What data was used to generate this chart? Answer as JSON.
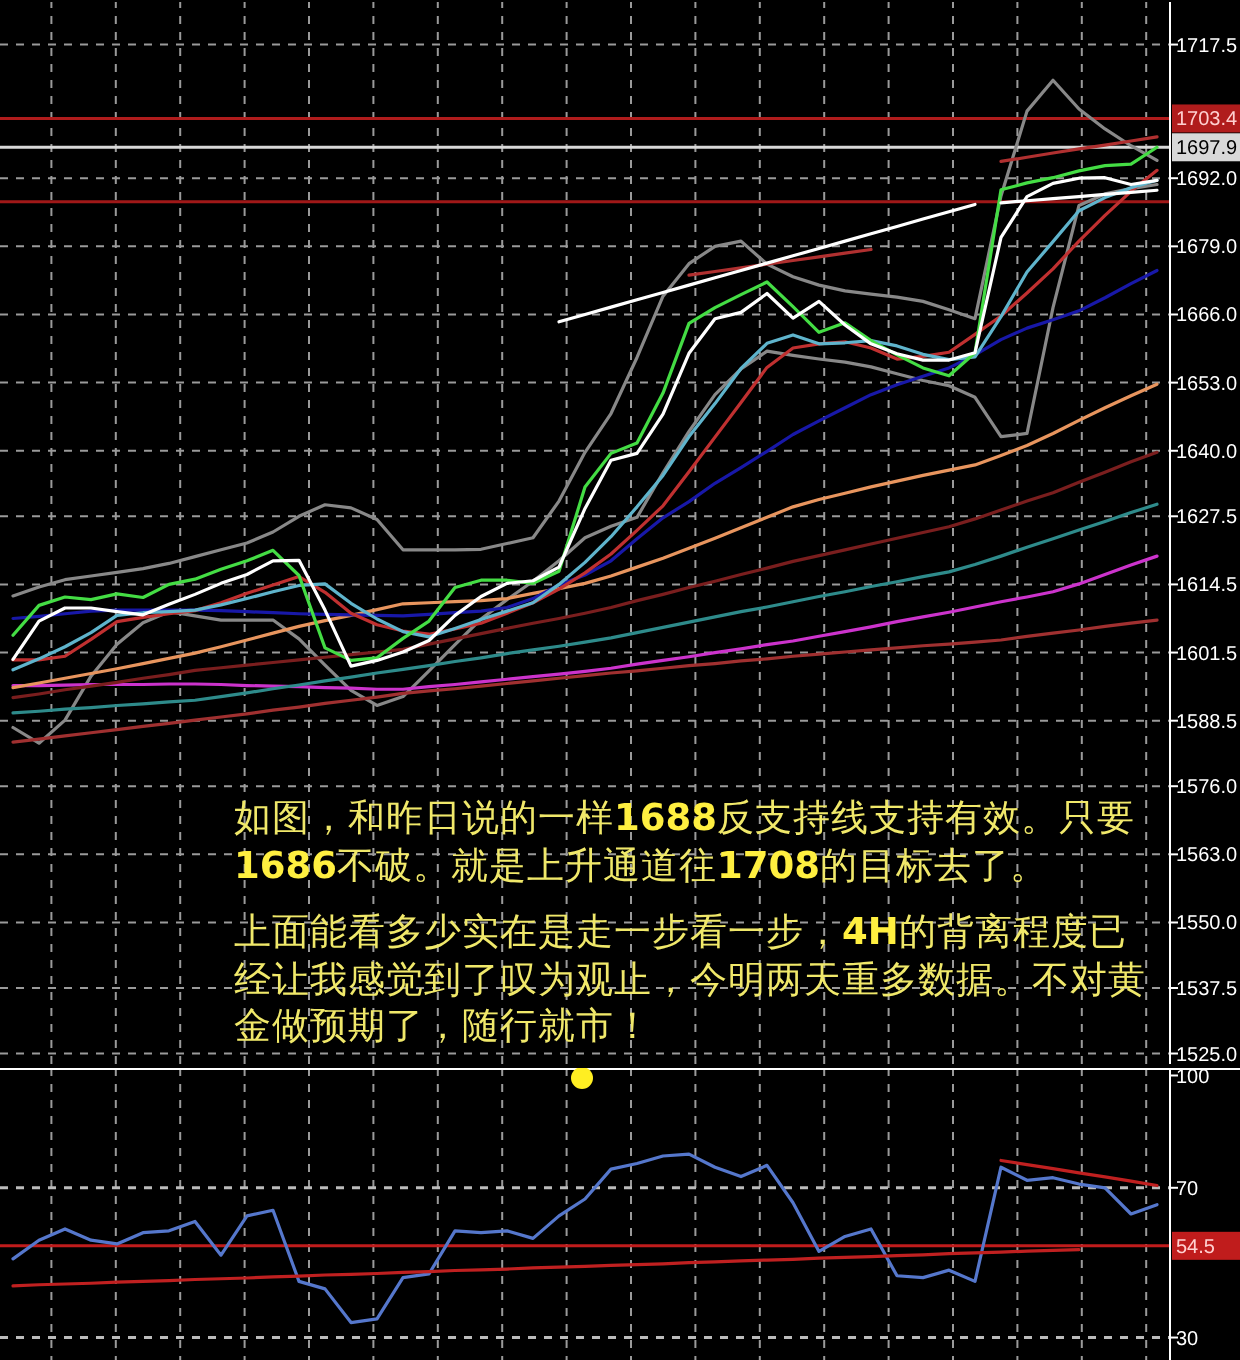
{
  "chart_data": [
    {
      "type": "line",
      "ylim": [
        1523,
        1726
      ],
      "grid": true,
      "tick_labels": "y",
      "categories": [
        null,
        null,
        null,
        null,
        null,
        null,
        null,
        null,
        null,
        null,
        null,
        null,
        null,
        null,
        null,
        null,
        null,
        null,
        null,
        null,
        null,
        null,
        null,
        null,
        null,
        null,
        null,
        null,
        null,
        null,
        null,
        null,
        null,
        null,
        null,
        null,
        null,
        null,
        null,
        null,
        null,
        null,
        null,
        null,
        null
      ],
      "yticks": [
        {
          "value": 1717.5,
          "label": "1717.5"
        },
        {
          "value": 1692,
          "label": "1692.0"
        },
        {
          "value": 1679,
          "label": "1679.0"
        },
        {
          "value": 1666,
          "label": "1666.0"
        },
        {
          "value": 1653,
          "label": "1653.0"
        },
        {
          "value": 1640,
          "label": "1640.0"
        },
        {
          "value": 1627.5,
          "label": "1627.5"
        },
        {
          "value": 1614.5,
          "label": "1614.5"
        },
        {
          "value": 1601.5,
          "label": "1601.5"
        },
        {
          "value": 1588.5,
          "label": "1588.5"
        },
        {
          "value": 1576,
          "label": "1576.0"
        },
        {
          "value": 1563,
          "label": "1563.0"
        },
        {
          "value": 1550,
          "label": "1550.0"
        },
        {
          "value": 1537.5,
          "label": "1537.5"
        },
        {
          "value": 1525,
          "label": "1525.0"
        }
      ],
      "ref_lines": [
        {
          "axis": "y",
          "value": 1703.4,
          "label": "1703.4",
          "color": "#b01c1c"
        },
        {
          "axis": "y",
          "value": 1697.9,
          "label": "1697.9",
          "color": "#d8d8d8"
        },
        {
          "axis": "y",
          "value": 1687.5,
          "color": "#a01818"
        }
      ],
      "series": [
        {
          "color": "#888888",
          "values": [
            1612.3,
            1614.0,
            1615.4,
            1616.1,
            1616.8,
            1617.5,
            1618.5,
            1619.8,
            1621.1,
            1622.4,
            1624.5,
            1627.5,
            1629.7,
            1629.1,
            1626.9,
            1621.1,
            1621.1,
            1621.1,
            1621.2,
            1622.3,
            1623.4,
            1630.4,
            1639.7,
            1647.1,
            1657.8,
            1669.5,
            1675.7,
            1679.0,
            1680.0,
            1675.6,
            1673.2,
            1671.6,
            1670.5,
            1669.9,
            1669.3,
            1668.5,
            1666.9,
            1665.2,
            1688.6,
            1704.8,
            1710.7,
            1705.2,
            1701.4,
            1698.2,
            1695.4
          ]
        },
        {
          "color": "#888888",
          "values": [
            1587.2,
            1584.2,
            1588.6,
            1597.0,
            1603.1,
            1607.2,
            1609.3,
            1608.5,
            1607.7,
            1607.7,
            1607.7,
            1604.1,
            1599.1,
            1594.3,
            1591.4,
            1593.1,
            1598.0,
            1603.0,
            1607.9,
            1611.6,
            1615.1,
            1619.0,
            1623.4,
            1625.6,
            1627.3,
            1635.8,
            1643.7,
            1650.7,
            1655.6,
            1659.0,
            1658.2,
            1657.5,
            1656.9,
            1656.0,
            1654.7,
            1653.4,
            1652.4,
            1650.2,
            1642.7,
            1643.3,
            1667.3,
            1686.8,
            1689.0,
            1690.0,
            1690.8
          ]
        },
        {
          "color": "#a03030",
          "values": [
            1584.4,
            1585.0,
            1585.6,
            1586.2,
            1586.8,
            1587.4,
            1588.0,
            1588.6,
            1589.2,
            1589.8,
            1590.5,
            1591.1,
            1591.8,
            1592.4,
            1593.0,
            1593.7,
            1594.2,
            1594.6,
            1595.1,
            1595.6,
            1596.1,
            1596.6,
            1597.1,
            1597.6,
            1598.0,
            1598.5,
            1599.0,
            1599.4,
            1599.9,
            1600.3,
            1600.8,
            1601.2,
            1601.6,
            1602.0,
            1602.4,
            1602.8,
            1603.1,
            1603.5,
            1603.9,
            1604.6,
            1605.2,
            1605.8,
            1606.5,
            1607.1,
            1607.7
          ]
        },
        {
          "color": "#cc33cc",
          "values": [
            1595.2,
            1595.2,
            1595.3,
            1595.4,
            1595.4,
            1595.4,
            1595.5,
            1595.5,
            1595.4,
            1595.2,
            1595.1,
            1595.0,
            1594.8,
            1594.7,
            1594.5,
            1594.5,
            1595.0,
            1595.4,
            1595.9,
            1596.4,
            1596.9,
            1597.4,
            1597.9,
            1598.5,
            1599.3,
            1600.0,
            1600.7,
            1601.5,
            1602.2,
            1603.0,
            1603.7,
            1604.6,
            1605.5,
            1606.4,
            1607.4,
            1608.3,
            1609.2,
            1610.2,
            1611.2,
            1612.1,
            1613.1,
            1614.6,
            1616.4,
            1618.2,
            1619.9
          ]
        },
        {
          "color": "#2e8b8b",
          "values": [
            1590.0,
            1590.3,
            1590.7,
            1591.0,
            1591.4,
            1591.7,
            1592.1,
            1592.4,
            1593.1,
            1593.8,
            1594.6,
            1595.3,
            1596.1,
            1596.8,
            1597.6,
            1598.3,
            1599.0,
            1599.8,
            1600.5,
            1601.3,
            1602.0,
            1602.7,
            1603.5,
            1604.3,
            1605.3,
            1606.3,
            1607.3,
            1608.3,
            1609.3,
            1610.2,
            1611.2,
            1612.2,
            1613.1,
            1614.1,
            1615.0,
            1616.0,
            1616.9,
            1618.3,
            1619.9,
            1621.6,
            1623.2,
            1624.9,
            1626.5,
            1628.2,
            1629.8
          ]
        },
        {
          "color": "#7a1e1e",
          "values": [
            1592.9,
            1593.6,
            1594.4,
            1595.1,
            1595.8,
            1596.6,
            1597.3,
            1598.1,
            1598.6,
            1599.1,
            1599.6,
            1600.1,
            1600.6,
            1601.1,
            1601.6,
            1602.1,
            1603.1,
            1604.1,
            1605.1,
            1606.1,
            1607.1,
            1608.0,
            1609.0,
            1610.1,
            1611.4,
            1612.6,
            1613.9,
            1615.1,
            1616.4,
            1617.6,
            1618.9,
            1620.0,
            1621.1,
            1622.2,
            1623.3,
            1624.4,
            1625.5,
            1627.0,
            1628.7,
            1630.4,
            1632.0,
            1634.0,
            1635.9,
            1637.9,
            1639.7
          ]
        },
        {
          "color": "#e8955e",
          "values": [
            1594.8,
            1595.7,
            1596.6,
            1597.5,
            1598.4,
            1599.4,
            1600.4,
            1601.4,
            1602.6,
            1603.9,
            1605.2,
            1606.5,
            1607.6,
            1608.6,
            1609.7,
            1610.8,
            1611.0,
            1611.2,
            1611.4,
            1611.8,
            1612.8,
            1613.7,
            1614.7,
            1616.1,
            1617.8,
            1619.5,
            1621.4,
            1623.3,
            1625.3,
            1627.3,
            1629.3,
            1630.7,
            1631.9,
            1633.1,
            1634.2,
            1635.3,
            1636.3,
            1637.3,
            1639.1,
            1641.0,
            1643.3,
            1645.8,
            1648.2,
            1650.5,
            1652.7
          ]
        },
        {
          "color": "#1818a8",
          "values": [
            1608.0,
            1608.4,
            1608.9,
            1609.4,
            1609.6,
            1609.6,
            1609.6,
            1609.6,
            1609.5,
            1609.3,
            1609.1,
            1608.9,
            1608.8,
            1608.7,
            1608.6,
            1608.5,
            1608.8,
            1609.1,
            1609.4,
            1610.1,
            1611.8,
            1614.4,
            1616.3,
            1619.0,
            1623.2,
            1627.2,
            1630.3,
            1633.8,
            1636.8,
            1639.9,
            1643.1,
            1645.7,
            1648.2,
            1650.7,
            1652.6,
            1654.2,
            1655.8,
            1658.3,
            1661.2,
            1663.4,
            1665.0,
            1666.7,
            1669.2,
            1671.9,
            1674.4
          ]
        },
        {
          "color": "#c03030",
          "values": [
            1600.1,
            1600.1,
            1600.8,
            1604.0,
            1607.4,
            1608.2,
            1608.9,
            1609.5,
            1611.0,
            1612.8,
            1614.4,
            1616.0,
            1613.0,
            1609.0,
            1606.8,
            1605.6,
            1605.0,
            1606.0,
            1607.1,
            1609.0,
            1611.0,
            1613.6,
            1616.7,
            1620.3,
            1624.8,
            1629.5,
            1636.0,
            1642.6,
            1649.2,
            1655.9,
            1659.6,
            1660.4,
            1660.8,
            1659.6,
            1657.5,
            1658.0,
            1658.8,
            1662.2,
            1665.7,
            1670.1,
            1674.7,
            1680.0,
            1684.9,
            1689.5,
            1693.5
          ]
        },
        {
          "color": "#5fb4cc",
          "values": [
            1598.2,
            1600.3,
            1602.6,
            1605.3,
            1608.6,
            1609.1,
            1609.3,
            1609.6,
            1610.6,
            1611.8,
            1613.1,
            1614.3,
            1614.6,
            1610.9,
            1607.9,
            1605.5,
            1604.5,
            1606.1,
            1607.8,
            1609.4,
            1611.0,
            1614.5,
            1618.7,
            1623.6,
            1629.3,
            1635.3,
            1642.7,
            1649.0,
            1655.7,
            1660.5,
            1662.1,
            1660.4,
            1660.6,
            1661.0,
            1660.0,
            1658.4,
            1657.4,
            1657.9,
            1665.6,
            1674.1,
            1679.9,
            1685.8,
            1688.3,
            1690.2,
            1691.6
          ]
        },
        {
          "color": "#44dd44",
          "values": [
            1604.8,
            1610.5,
            1612.1,
            1611.6,
            1612.7,
            1612.0,
            1614.5,
            1615.5,
            1617.4,
            1619.0,
            1621.0,
            1616.2,
            1602.4,
            1600.0,
            1600.5,
            1604.2,
            1607.5,
            1613.9,
            1615.3,
            1615.3,
            1614.7,
            1617.0,
            1633.1,
            1639.5,
            1641.5,
            1651.0,
            1664.3,
            1667.3,
            1669.8,
            1672.2,
            1667.5,
            1662.6,
            1664.4,
            1661.0,
            1658.3,
            1655.8,
            1654.3,
            1658.7,
            1689.8,
            1691.1,
            1692.1,
            1693.4,
            1694.4,
            1694.7,
            1697.9
          ]
        },
        {
          "color": "#ffffff",
          "values": [
            1600.2,
            1607.5,
            1610.0,
            1610.0,
            1609.3,
            1608.7,
            1610.7,
            1612.6,
            1614.7,
            1616.4,
            1619.0,
            1619.1,
            1609.6,
            1598.9,
            1600.0,
            1601.6,
            1603.8,
            1608.6,
            1612.2,
            1614.7,
            1615.2,
            1617.8,
            1629.0,
            1638.2,
            1639.5,
            1647.0,
            1658.6,
            1665.2,
            1666.4,
            1670.0,
            1665.3,
            1668.5,
            1664.0,
            1660.4,
            1658.5,
            1657.3,
            1657.3,
            1658.7,
            1680.7,
            1688.5,
            1691.0,
            1692.0,
            1692.1,
            1690.8,
            1691.6
          ]
        },
        {
          "color": "#b03030",
          "values": [
            null,
            null,
            null,
            null,
            null,
            null,
            null,
            null,
            null,
            null,
            null,
            null,
            null,
            null,
            null,
            null,
            null,
            null,
            null,
            null,
            null,
            null,
            null,
            null,
            null,
            null,
            1673.5,
            1674.2,
            1674.9,
            1675.6,
            1676.3,
            1677.0,
            1677.7,
            1678.4,
            null,
            null,
            null,
            null,
            null,
            null,
            null,
            null,
            null,
            null,
            null
          ]
        },
        {
          "color": "#b03030",
          "values": [
            null,
            null,
            null,
            null,
            null,
            null,
            null,
            null,
            null,
            null,
            null,
            null,
            null,
            null,
            null,
            null,
            null,
            null,
            null,
            null,
            null,
            null,
            null,
            null,
            null,
            null,
            null,
            null,
            null,
            null,
            null,
            null,
            null,
            null,
            null,
            null,
            null,
            null,
            1695.2,
            1696.0,
            1696.8,
            1697.6,
            1698.3,
            1699.1,
            1699.9
          ]
        },
        {
          "color": "#ffffff",
          "values": [
            null,
            null,
            null,
            null,
            null,
            null,
            null,
            null,
            null,
            null,
            null,
            null,
            null,
            null,
            null,
            null,
            null,
            null,
            null,
            null,
            null,
            1664.6,
            1666.0,
            1667.4,
            1668.8,
            1670.2,
            1671.6,
            1673.0,
            1674.4,
            1675.8,
            1677.2,
            1678.6,
            1680.0,
            1681.4,
            1682.8,
            1684.2,
            1685.6,
            1687.0,
            null,
            null,
            null,
            null,
            null,
            null,
            null
          ]
        },
        {
          "color": "#ffffff",
          "values": [
            null,
            null,
            null,
            null,
            null,
            null,
            null,
            null,
            null,
            null,
            null,
            null,
            null,
            null,
            null,
            null,
            null,
            null,
            null,
            null,
            null,
            null,
            null,
            null,
            null,
            null,
            null,
            null,
            null,
            null,
            null,
            null,
            null,
            null,
            null,
            null,
            null,
            null,
            1687.3,
            1687.7,
            1688.1,
            1688.5,
            1688.9,
            1689.3,
            1689.7
          ]
        }
      ],
      "annotations": [
        "如图，和昨日说的一样**1688**反支持线支持有效。只要**1686**不破。就是上升通道往**1708**的目标去了。",
        "上面能看多少实在是走一步看一步，**4H**的背离程度已经让我感觉到了叹为观止，今明两天重多数据。不对黄金做预期了，随行就市！"
      ]
    },
    {
      "type": "line",
      "ylim": [
        24,
        102
      ],
      "grid": "x",
      "tick_labels": "y",
      "categories": [
        null,
        null,
        null,
        null,
        null,
        null,
        null,
        null,
        null,
        null,
        null,
        null,
        null,
        null,
        null,
        null,
        null,
        null,
        null,
        null,
        null,
        null,
        null,
        null,
        null,
        null,
        null,
        null,
        null,
        null,
        null,
        null,
        null,
        null,
        null,
        null,
        null,
        null,
        null,
        null,
        null,
        null,
        null,
        null,
        null
      ],
      "yticks": [
        100,
        70,
        30
      ],
      "ref_lines": [
        {
          "axis": "y",
          "value": 70,
          "color": "#bbbbbb",
          "line_style": "dashed"
        },
        {
          "axis": "y",
          "value": 30,
          "color": "#bbbbbb",
          "line_style": "dashed"
        },
        {
          "axis": "y",
          "value": 54.5,
          "label": "54.5",
          "color": "#c01c1c"
        }
      ],
      "series": [
        {
          "color": "#5577cc",
          "values": [
            51,
            56,
            59,
            56,
            55,
            58,
            58.5,
            61,
            52,
            62.5,
            64,
            45,
            43,
            34,
            35,
            46,
            47,
            58.5,
            58,
            58.5,
            56.5,
            62.5,
            67,
            75,
            76.5,
            78.5,
            79,
            75.5,
            73,
            76,
            66,
            53,
            57,
            59,
            46.5,
            46,
            48,
            45,
            75.5,
            72,
            72.7,
            71,
            70,
            63,
            65.5
          ]
        },
        {
          "color": "#c02020",
          "values": [
            43.8,
            44.1,
            44.3,
            44.5,
            44.8,
            45.0,
            45.2,
            45.5,
            45.7,
            45.9,
            46.2,
            46.4,
            46.7,
            46.9,
            47.1,
            47.4,
            47.6,
            47.9,
            48.1,
            48.3,
            48.6,
            48.8,
            49.0,
            49.3,
            49.5,
            49.7,
            50.0,
            50.2,
            50.5,
            50.7,
            50.9,
            51.2,
            51.4,
            51.6,
            51.9,
            52.1,
            52.4,
            52.6,
            52.8,
            53.1,
            53.3,
            53.5,
            null,
            null,
            null
          ]
        },
        {
          "color": "#c02020",
          "values": [
            null,
            null,
            null,
            null,
            null,
            null,
            null,
            null,
            null,
            null,
            null,
            null,
            null,
            null,
            null,
            null,
            null,
            null,
            null,
            null,
            null,
            null,
            null,
            null,
            null,
            null,
            null,
            null,
            null,
            null,
            null,
            null,
            null,
            null,
            null,
            null,
            null,
            null,
            77.3,
            76.2,
            75.1,
            74.0,
            72.9,
            71.8,
            70.6
          ]
        }
      ]
    }
  ]
}
